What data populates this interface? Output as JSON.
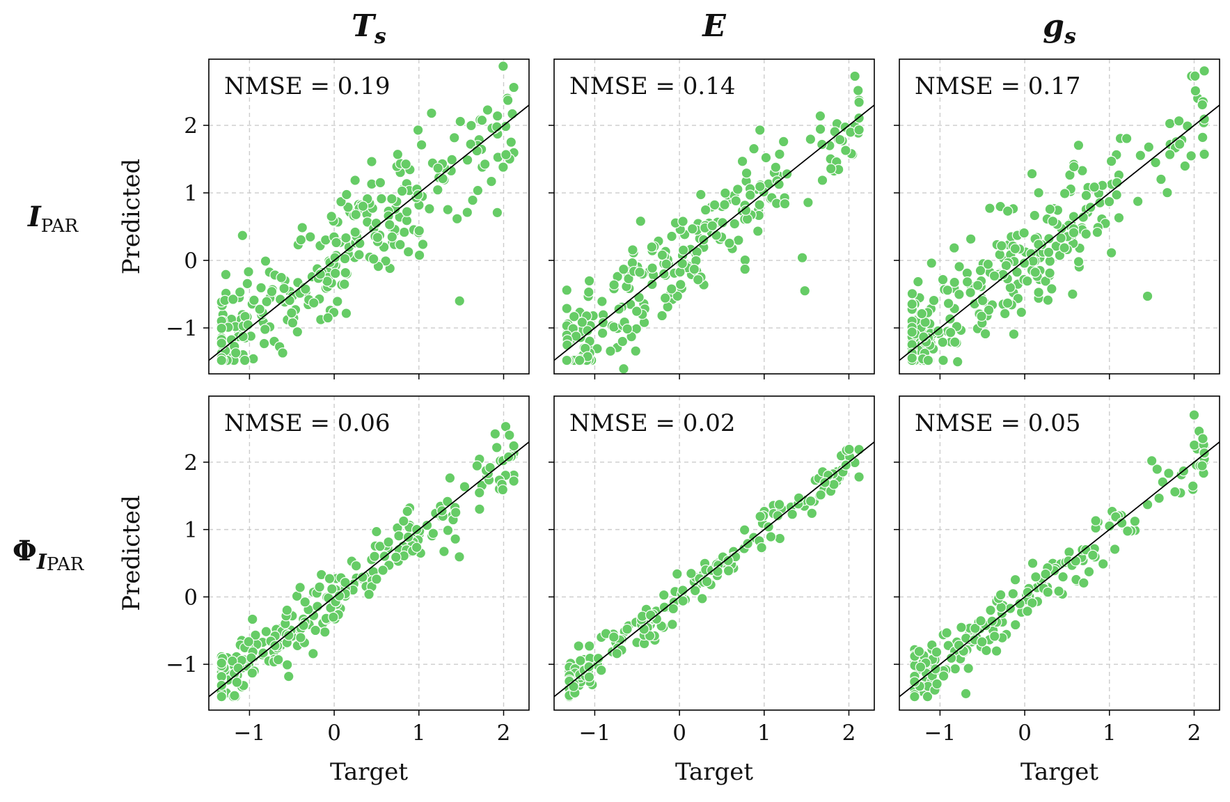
{
  "figure": {
    "columns": [
      "Ts",
      "E",
      "gs"
    ],
    "rows": [
      "I_PAR",
      "Phi_I_PAR"
    ]
  },
  "col_titles": [
    {
      "main": "T",
      "sub": "s"
    },
    {
      "main": "E",
      "sub": ""
    },
    {
      "main": "g",
      "sub": "s"
    }
  ],
  "row_labels": [
    {
      "main": "I",
      "sub": "PAR"
    },
    {
      "main": "Φ",
      "sub_main": "I",
      "sub": "PAR"
    }
  ],
  "marker_color": "#66cc66",
  "marker_edge": "#ffffff",
  "line_color": "#000000",
  "grid_color": "#cccccc",
  "chart_data": [
    {
      "type": "scatter",
      "row": 0,
      "col": 0,
      "title": "T_s",
      "xlabel": "",
      "ylabel": "Predicted",
      "annotation": "NMSE = 0.19",
      "xlim": [
        -1.48,
        2.3
      ],
      "ylim": [
        -1.68,
        2.98
      ],
      "xticks": [
        -1,
        0,
        1,
        2
      ],
      "yticks": [
        -1,
        0,
        1,
        2
      ],
      "tick_labels": [
        "−1",
        "0",
        "1",
        "2"
      ],
      "identity_line": true,
      "n_points": 300,
      "nmse": 0.19,
      "seed": 11,
      "clip_low": -1.33,
      "clip_high": 2.12,
      "outliers": [
        [
          1.48,
          -0.6
        ],
        [
          0.99,
          1.93
        ]
      ]
    },
    {
      "type": "scatter",
      "row": 0,
      "col": 1,
      "title": "E",
      "xlabel": "",
      "ylabel": "",
      "annotation": "NMSE = 0.14",
      "xlim": [
        -1.48,
        2.3
      ],
      "ylim": [
        -1.68,
        2.98
      ],
      "xticks": [
        -1,
        0,
        1,
        2
      ],
      "yticks": [
        -1,
        0,
        1,
        2
      ],
      "tick_labels": [
        "−1",
        "0",
        "1",
        "2"
      ],
      "identity_line": true,
      "n_points": 270,
      "nmse": 0.14,
      "seed": 23,
      "clip_low": -1.33,
      "clip_high": 2.12,
      "outliers": [
        [
          1.48,
          -0.45
        ],
        [
          0.95,
          1.93
        ],
        [
          1.45,
          0.04
        ]
      ]
    },
    {
      "type": "scatter",
      "row": 0,
      "col": 2,
      "title": "g_s",
      "xlabel": "",
      "ylabel": "",
      "annotation": "NMSE = 0.17",
      "xlim": [
        -1.48,
        2.3
      ],
      "ylim": [
        -1.68,
        2.98
      ],
      "xticks": [
        -1,
        0,
        1,
        2
      ],
      "yticks": [
        -1,
        0,
        1,
        2
      ],
      "tick_labels": [
        "−1",
        "0",
        "1",
        "2"
      ],
      "identity_line": true,
      "n_points": 290,
      "nmse": 0.17,
      "seed": 37,
      "clip_low": -1.33,
      "clip_high": 2.12,
      "outliers": [
        [
          1.45,
          -0.53
        ],
        [
          1.97,
          2.73
        ],
        [
          2.01,
          2.73
        ],
        [
          -1.1,
          -0.04
        ]
      ]
    },
    {
      "type": "scatter",
      "row": 1,
      "col": 0,
      "title": "",
      "xlabel": "Target",
      "ylabel": "Predicted",
      "annotation": "NMSE = 0.06",
      "xlim": [
        -1.48,
        2.3
      ],
      "ylim": [
        -1.68,
        2.98
      ],
      "xticks": [
        -1,
        0,
        1,
        2
      ],
      "yticks": [
        -1,
        0,
        1,
        2
      ],
      "tick_labels": [
        "−1",
        "0",
        "1",
        "2"
      ],
      "identity_line": true,
      "n_points": 240,
      "nmse": 0.06,
      "seed": 41,
      "clip_low": -1.33,
      "clip_high": 2.12,
      "outliers": [
        [
          1.43,
          0.86
        ],
        [
          1.9,
          2.42
        ]
      ]
    },
    {
      "type": "scatter",
      "row": 1,
      "col": 1,
      "title": "",
      "xlabel": "Target",
      "ylabel": "",
      "annotation": "NMSE = 0.02",
      "xlim": [
        -1.48,
        2.3
      ],
      "ylim": [
        -1.68,
        2.98
      ],
      "xticks": [
        -1,
        0,
        1,
        2
      ],
      "yticks": [
        -1,
        0,
        1,
        2
      ],
      "tick_labels": [
        "−1",
        "0",
        "1",
        "2"
      ],
      "identity_line": true,
      "n_points": 210,
      "nmse": 0.02,
      "seed": 53,
      "clip_low": -1.3,
      "clip_high": 2.12,
      "outliers": []
    },
    {
      "type": "scatter",
      "row": 1,
      "col": 2,
      "title": "",
      "xlabel": "Target",
      "ylabel": "",
      "annotation": "NMSE = 0.05",
      "xlim": [
        -1.48,
        2.3
      ],
      "ylim": [
        -1.68,
        2.98
      ],
      "xticks": [
        -1,
        0,
        1,
        2
      ],
      "yticks": [
        -1,
        0,
        1,
        2
      ],
      "tick_labels": [
        "−1",
        "0",
        "1",
        "2"
      ],
      "identity_line": true,
      "n_points": 200,
      "nmse": 0.05,
      "seed": 67,
      "clip_low": -1.3,
      "clip_high": 2.12,
      "outliers": [
        [
          2.0,
          2.7
        ],
        [
          1.45,
          1.37
        ],
        [
          1.5,
          2.02
        ]
      ]
    }
  ]
}
